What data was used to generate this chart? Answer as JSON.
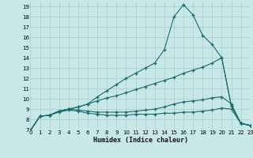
{
  "xlabel": "Humidex (Indice chaleur)",
  "bg_color": "#c8e8e8",
  "line_color": "#1a6b6b",
  "grid_color": "#a8cccc",
  "xlim": [
    0,
    23
  ],
  "ylim": [
    7,
    19.5
  ],
  "xticks": [
    0,
    1,
    2,
    3,
    4,
    5,
    6,
    7,
    8,
    9,
    10,
    11,
    12,
    13,
    14,
    15,
    16,
    17,
    18,
    19,
    20,
    21,
    22,
    23
  ],
  "yticks": [
    7,
    8,
    9,
    10,
    11,
    12,
    13,
    14,
    15,
    16,
    17,
    18,
    19
  ],
  "series1_x": [
    0,
    1,
    2,
    3,
    4,
    5,
    6,
    7,
    8,
    9,
    10,
    11,
    12,
    13,
    14,
    15,
    16,
    17,
    18,
    19,
    20,
    21,
    22,
    23
  ],
  "series1_y": [
    6.9,
    8.3,
    8.4,
    8.8,
    9.0,
    9.2,
    9.5,
    10.2,
    10.8,
    11.4,
    12.0,
    12.5,
    13.0,
    13.5,
    14.8,
    18.0,
    19.2,
    18.2,
    16.2,
    15.3,
    14.0,
    9.3,
    7.6,
    7.4
  ],
  "series2_x": [
    0,
    1,
    2,
    3,
    4,
    5,
    6,
    7,
    8,
    9,
    10,
    11,
    12,
    13,
    14,
    15,
    16,
    17,
    18,
    19,
    20,
    21,
    22,
    23
  ],
  "series2_y": [
    6.9,
    8.3,
    8.4,
    8.8,
    9.0,
    9.2,
    9.5,
    9.8,
    10.1,
    10.3,
    10.6,
    10.9,
    11.2,
    11.5,
    11.8,
    12.1,
    12.5,
    12.8,
    13.1,
    13.5,
    14.0,
    9.3,
    7.6,
    7.4
  ],
  "series3_x": [
    0,
    1,
    2,
    3,
    4,
    5,
    6,
    7,
    8,
    9,
    10,
    11,
    12,
    13,
    14,
    15,
    16,
    17,
    18,
    19,
    20,
    21,
    22,
    23
  ],
  "series3_y": [
    6.9,
    8.3,
    8.4,
    8.8,
    9.0,
    8.9,
    8.8,
    8.7,
    8.7,
    8.7,
    8.7,
    8.8,
    8.9,
    9.0,
    9.2,
    9.5,
    9.7,
    9.8,
    9.9,
    10.1,
    10.2,
    9.5,
    7.6,
    7.4
  ],
  "series4_x": [
    0,
    1,
    2,
    3,
    4,
    5,
    6,
    7,
    8,
    9,
    10,
    11,
    12,
    13,
    14,
    15,
    16,
    17,
    18,
    19,
    20,
    21,
    22,
    23
  ],
  "series4_y": [
    6.9,
    8.3,
    8.4,
    8.7,
    8.9,
    8.8,
    8.6,
    8.5,
    8.4,
    8.4,
    8.4,
    8.5,
    8.5,
    8.5,
    8.6,
    8.6,
    8.7,
    8.7,
    8.8,
    8.9,
    9.1,
    9.0,
    7.6,
    7.4
  ]
}
